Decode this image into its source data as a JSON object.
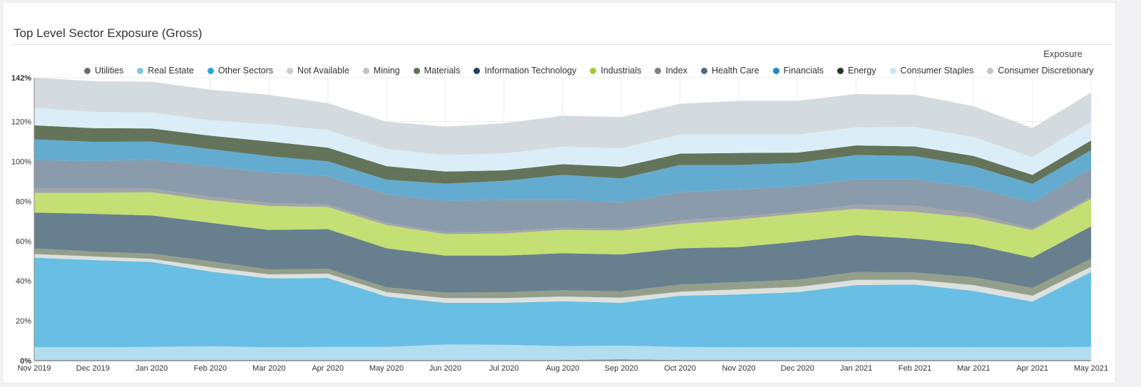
{
  "title": "Top Level Sector Exposure (Gross)",
  "axis_title": "Exposure",
  "chart_data": {
    "type": "area",
    "stacked": true,
    "title": "Top Level Sector Exposure (Gross)",
    "ylabel": "Exposure",
    "ylim": [
      0,
      142
    ],
    "y_ticks": [
      "0%",
      "20%",
      "40%",
      "60%",
      "80%",
      "100%",
      "120%",
      "142%"
    ],
    "grid": true,
    "legend_position": "top",
    "categories": [
      "Nov 2019",
      "Dec 2019",
      "Jan 2020",
      "Feb 2020",
      "Mar 2020",
      "Apr 2020",
      "May 2020",
      "Jun 2020",
      "Jul 2020",
      "Aug 2020",
      "Sep 2020",
      "Oct 2020",
      "Nov 2020",
      "Dec 2020",
      "Jan 2021",
      "Feb 2021",
      "Mar 2021",
      "Apr 2021",
      "May 2021"
    ],
    "series": [
      {
        "name": "Utilities",
        "legend_color": "#6d6e71",
        "fill": "#9a9a9c",
        "values": [
          0.2,
          0.2,
          0.2,
          0.2,
          0.2,
          0.2,
          0.2,
          0.2,
          0.2,
          0.3,
          0.7,
          0.3,
          0.2,
          0.2,
          0.2,
          0.2,
          0.2,
          0.2,
          0.2
        ]
      },
      {
        "name": "Real Estate",
        "legend_color": "#7cc8ea",
        "fill": "#b3deef",
        "values": [
          6.5,
          6.5,
          6.7,
          7.0,
          6.5,
          6.7,
          6.7,
          7.9,
          7.7,
          7.0,
          6.8,
          6.6,
          6.5,
          6.5,
          6.5,
          6.5,
          6.5,
          6.5,
          6.7
        ]
      },
      {
        "name": "Other Sectors",
        "legend_color": "#29a3dc",
        "fill": "#69bee3",
        "values": [
          45.0,
          43.8,
          42.6,
          37.5,
          34.6,
          34.6,
          25.3,
          20.9,
          21.1,
          22.5,
          21.5,
          25.7,
          26.5,
          27.7,
          31.2,
          31.5,
          28.3,
          22.9,
          37.6
        ]
      },
      {
        "name": "Not Available",
        "legend_color": "#c7cfc7",
        "fill": "#dce1dd",
        "values": [
          1.6,
          1.6,
          1.4,
          2.0,
          1.8,
          2.0,
          2.0,
          2.2,
          2.2,
          2.2,
          2.4,
          1.8,
          2.4,
          2.4,
          2.5,
          2.2,
          2.7,
          2.8,
          2.4
        ]
      },
      {
        "name": "Mining",
        "legend_color": "#c3c3c3",
        "fill": "#cfd3d0",
        "values": [
          0.2,
          0.2,
          0.2,
          0.2,
          0.2,
          0.2,
          0.2,
          0.2,
          0.2,
          0.2,
          0.2,
          0.2,
          0.2,
          0.2,
          0.2,
          0.2,
          0.2,
          0.2,
          0.2
        ]
      },
      {
        "name": "Materials",
        "legend_color": "#5f7355",
        "fill": "#939f8a",
        "values": [
          2.9,
          2.4,
          2.6,
          3.0,
          2.4,
          2.4,
          2.4,
          2.7,
          3.0,
          3.1,
          3.1,
          3.6,
          3.6,
          3.6,
          3.9,
          3.6,
          3.9,
          3.9,
          4.0
        ]
      },
      {
        "name": "Information Technology",
        "legend_color": "#1d445f",
        "fill": "#687f8d",
        "values": [
          17.9,
          19.0,
          19.2,
          19.3,
          19.9,
          19.9,
          19.6,
          18.6,
          18.3,
          18.6,
          18.6,
          18.2,
          17.6,
          19.1,
          18.5,
          17.0,
          16.4,
          15.2,
          16.3
        ]
      },
      {
        "name": "Industrials",
        "legend_color": "#a4cc2f",
        "fill": "#c4df73",
        "values": [
          9.9,
          10.5,
          11.6,
          11.3,
          12.0,
          11.1,
          11.6,
          10.8,
          11.1,
          11.7,
          12.0,
          12.2,
          13.8,
          14.0,
          13.1,
          13.4,
          13.5,
          13.7,
          13.7
        ]
      },
      {
        "name": "Index",
        "legend_color": "#808080",
        "fill": "#a4a5a8",
        "values": [
          2.1,
          2.1,
          1.8,
          1.8,
          1.5,
          1.2,
          1.2,
          0.9,
          1.2,
          1.0,
          0.9,
          1.8,
          1.5,
          1.0,
          2.1,
          3.1,
          2.0,
          0.9,
          1.0
        ]
      },
      {
        "name": "Health Care",
        "legend_color": "#4d6a85",
        "fill": "#8a9bab",
        "values": [
          14.3,
          13.9,
          14.5,
          15.3,
          15.3,
          14.3,
          14.4,
          15.7,
          15.8,
          14.2,
          13.2,
          14.1,
          13.6,
          12.8,
          12.8,
          13.3,
          13.2,
          13.1,
          14.3
        ]
      },
      {
        "name": "Financials",
        "legend_color": "#1e88c0",
        "fill": "#63acd0",
        "values": [
          10.4,
          9.6,
          9.1,
          8.6,
          8.2,
          7.4,
          7.2,
          8.7,
          9.4,
          12.4,
          12.0,
          13.7,
          12.3,
          11.7,
          12.2,
          11.7,
          10.7,
          9.3,
          9.2
        ]
      },
      {
        "name": "Energy",
        "legend_color": "#24391a",
        "fill": "#63745a",
        "values": [
          7.1,
          6.9,
          6.6,
          6.7,
          7.4,
          6.9,
          6.8,
          6.1,
          5.3,
          5.4,
          5.9,
          5.7,
          6.0,
          5.2,
          4.8,
          4.8,
          5.1,
          4.5,
          4.9
        ]
      },
      {
        "name": "Consumer Staples",
        "legend_color": "#c7e5f5",
        "fill": "#dbeef7",
        "values": [
          8.7,
          8.1,
          8.0,
          7.7,
          8.5,
          8.8,
          8.6,
          8.3,
          8.4,
          8.8,
          9.3,
          9.5,
          9.2,
          9.0,
          9.1,
          9.8,
          9.5,
          8.9,
          9.4
        ]
      },
      {
        "name": "Consumer Discretionary",
        "legend_color": "#c0c8cf",
        "fill": "#d4dbdf",
        "values": [
          15.2,
          15.5,
          15.5,
          15.4,
          14.9,
          13.5,
          13.7,
          14.3,
          15.2,
          15.5,
          15.7,
          15.5,
          17.0,
          17.0,
          16.7,
          16.1,
          15.5,
          14.6,
          14.7
        ]
      }
    ]
  }
}
